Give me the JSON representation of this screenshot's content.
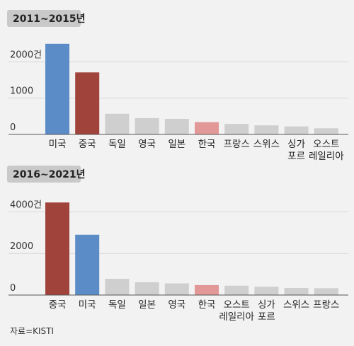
{
  "source": "자료=KISTI",
  "chart_data": [
    {
      "type": "bar",
      "title": "2011~2015년",
      "categories": [
        "미국",
        "중국",
        "독일",
        "영국",
        "일본",
        "한국",
        "프랑스",
        "스위스",
        "싱가\n포르",
        "오스트\n레일리아"
      ],
      "values": [
        2500,
        1710,
        570,
        450,
        430,
        340,
        290,
        250,
        220,
        170
      ],
      "ylim": [
        0,
        2750
      ],
      "yticks": [
        {
          "value": 0,
          "label": "0"
        },
        {
          "value": 1000,
          "label": "1000"
        },
        {
          "value": 2000,
          "label": "2000건"
        }
      ],
      "colors": [
        "#5b8cc8",
        "#a0433a",
        "#cfcfcf",
        "#cfcfcf",
        "#cfcfcf",
        "#e39898",
        "#cfcfcf",
        "#cfcfcf",
        "#cfcfcf",
        "#cfcfcf"
      ]
    },
    {
      "type": "bar",
      "title": "2016~2021년",
      "categories": [
        "중국",
        "미국",
        "독일",
        "일본",
        "영국",
        "한국",
        "오스트\n레일리아",
        "싱가\n포르",
        "스위스",
        "프랑스"
      ],
      "values": [
        4450,
        2900,
        780,
        620,
        560,
        480,
        450,
        400,
        340,
        330
      ],
      "ylim": [
        0,
        5000
      ],
      "yticks": [
        {
          "value": 0,
          "label": "0"
        },
        {
          "value": 2000,
          "label": "2000"
        },
        {
          "value": 4000,
          "label": "4000건"
        }
      ],
      "colors": [
        "#a0433a",
        "#5b8cc8",
        "#cfcfcf",
        "#cfcfcf",
        "#cfcfcf",
        "#e39898",
        "#cfcfcf",
        "#cfcfcf",
        "#cfcfcf",
        "#cfcfcf"
      ]
    }
  ]
}
